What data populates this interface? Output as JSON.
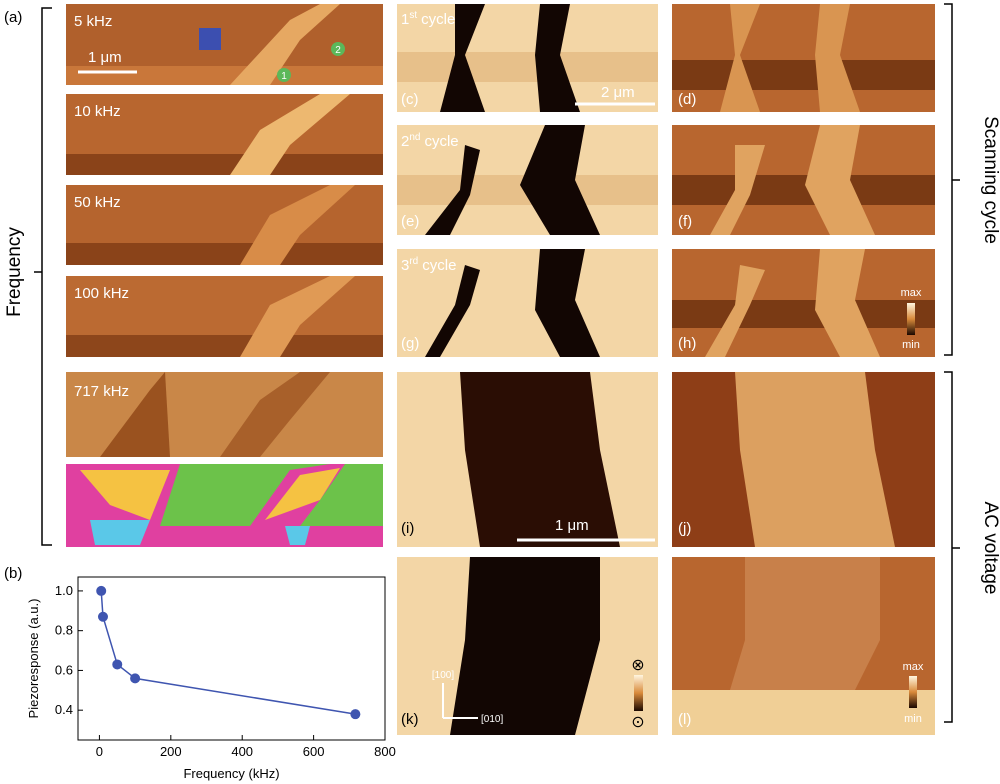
{
  "panel_a": {
    "label": "(a)",
    "frames": [
      {
        "label": "5 kHz"
      },
      {
        "label": "10 kHz"
      },
      {
        "label": "50 kHz"
      },
      {
        "label": "100 kHz"
      },
      {
        "label": "717 kHz"
      }
    ],
    "scale_bar": "1 μm",
    "markers": [
      "1",
      "2"
    ]
  },
  "panel_b": {
    "label": "(b)"
  },
  "chart_data": {
    "type": "line",
    "x": [
      5,
      10,
      50,
      100,
      717
    ],
    "values": [
      1.0,
      0.87,
      0.63,
      0.56,
      0.38
    ],
    "color": "#3f55b0",
    "x_label": "Frequency (kHz)",
    "y_label": "Piezoresponse (a.u.)",
    "xlim": [
      -60,
      800
    ],
    "ylim": [
      0.25,
      1.07
    ],
    "xticks": [
      0,
      200,
      400,
      600,
      800
    ],
    "yticks": [
      0.4,
      0.6,
      0.8,
      {
        "value": 1,
        "label": "1.0"
      }
    ]
  },
  "scanning": {
    "frames": [
      {
        "cycle_number": "1",
        "cycle_suffix": "st",
        "cycle_word": "cycle",
        "left_label": "(c)",
        "right_label": "(d)"
      },
      {
        "cycle_number": "2",
        "cycle_suffix": "nd",
        "cycle_word": "cycle",
        "left_label": "(e)",
        "right_label": "(f)"
      },
      {
        "cycle_number": "3",
        "cycle_suffix": "rd",
        "cycle_word": "cycle",
        "left_label": "(g)",
        "right_label": "(h)"
      }
    ],
    "scale_bar": "2 μm",
    "colorbar": {
      "max": "max",
      "min": "min"
    }
  },
  "ac": {
    "frames": [
      {
        "left_label": "(i)",
        "right_label": "(j)"
      },
      {
        "left_label": "(k)",
        "right_label": "(l)"
      }
    ],
    "scale_bar": "1 μm",
    "axes": [
      "[100]",
      "[010]"
    ],
    "polarization": [
      "⊗",
      "⊙"
    ],
    "colorbar": {
      "max": "max",
      "min": "min"
    }
  },
  "side_labels": {
    "frequency": "Frequency",
    "scanning_cycle": "Scanning cycle",
    "ac_voltage": "AC voltage"
  }
}
